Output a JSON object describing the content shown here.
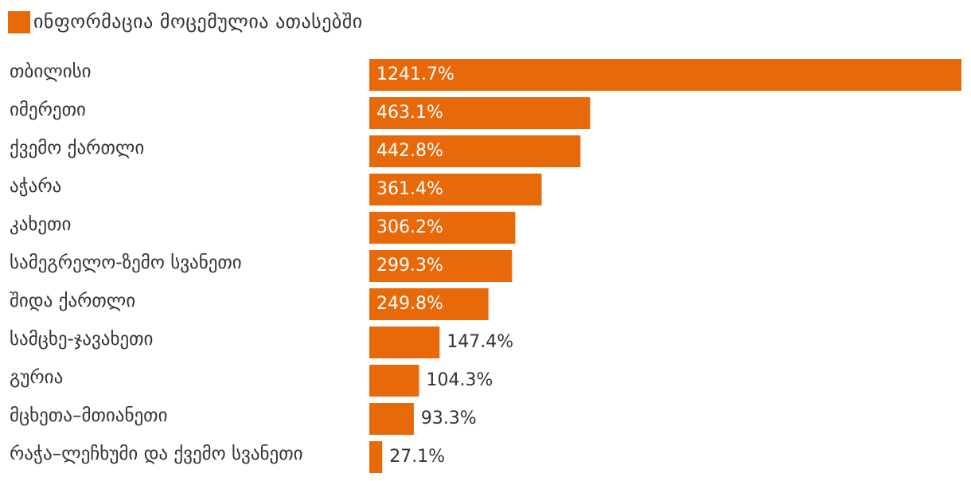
{
  "legend": {
    "label": "ინფორმაცია მოცემულია ათასებში",
    "color": "#E8690A"
  },
  "chart_data": {
    "type": "bar",
    "orientation": "horizontal",
    "series": [
      {
        "name": "ინფორმაცია მოცემულია ათასებში",
        "values": [
          1241.7,
          463.1,
          442.8,
          361.4,
          306.2,
          299.3,
          249.8,
          147.4,
          104.3,
          93.3,
          27.1
        ]
      }
    ],
    "categories": [
      "თბილისი",
      "იმერეთი",
      "ქვემო ქართლი",
      "აჭარა",
      "კახეთი",
      "სამეგრელო-ზემო სვანეთი",
      "შიდა ქართლი",
      "სამცხე-ჯავახეთი",
      "გურია",
      "მცხეთა–მთიანეთი",
      "რაჭა–ლეჩხუმი და ქვემო სვანეთი"
    ],
    "data_labels": [
      "1241.7%",
      "463.1%",
      "442.8%",
      "361.4%",
      "306.2%",
      "299.3%",
      "249.8%",
      "147.4%",
      "104.3%",
      "93.3%",
      "27.1%"
    ],
    "bar_color": "#E8690A",
    "xlim": [
      0,
      1241.7
    ],
    "grid": false,
    "legend_position": "top-left"
  }
}
